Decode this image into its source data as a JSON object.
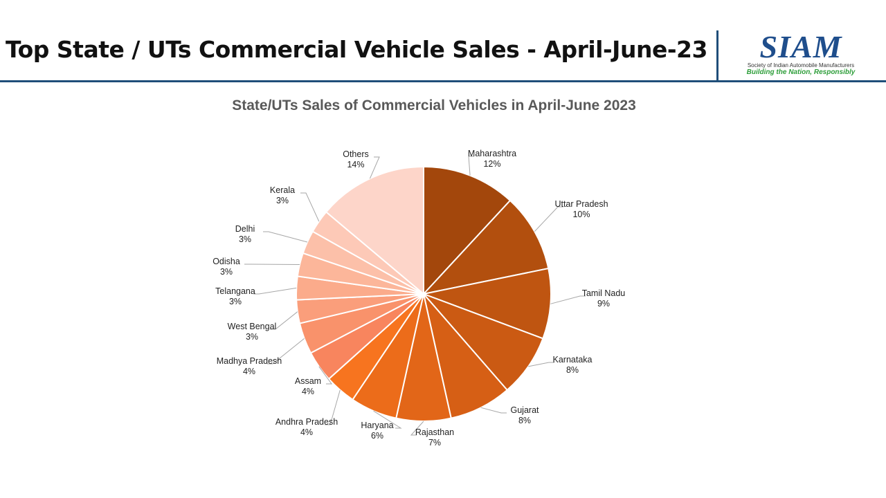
{
  "header": {
    "title": "Top State / UTs Commercial Vehicle Sales - April-June-23",
    "rule_color": "#1f4e79"
  },
  "logo": {
    "wordmark": "SIAM",
    "subtitle": "Society of Indian Automobile Manufacturers",
    "tagline": "Building the Nation, Responsibly",
    "wordmark_color": "#1f4e8c",
    "tagline_color": "#2e9e3a"
  },
  "chart_data": {
    "type": "pie",
    "title": "State/UTs Sales of Commercial Vehicles in April-June 2023",
    "legend": "none",
    "slices": [
      {
        "label": "Maharashtra",
        "value": 12,
        "display": "12%",
        "color": "#a3470c"
      },
      {
        "label": "Uttar Pradesh",
        "value": 10,
        "display": "10%",
        "color": "#b24f0e"
      },
      {
        "label": "Tamil Nadu",
        "value": 9,
        "display": "9%",
        "color": "#bf5511"
      },
      {
        "label": "Karnataka",
        "value": 8,
        "display": "8%",
        "color": "#cb5a13"
      },
      {
        "label": "Gujarat",
        "value": 8,
        "display": "8%",
        "color": "#d65f15"
      },
      {
        "label": "Rajasthan",
        "value": 7,
        "display": "7%",
        "color": "#e26618"
      },
      {
        "label": "Haryana",
        "value": 6,
        "display": "6%",
        "color": "#ec6c1a"
      },
      {
        "label": "Andhra Pradesh",
        "value": 4,
        "display": "4%",
        "color": "#f7741f"
      },
      {
        "label": "Assam",
        "value": 4,
        "display": "4%",
        "color": "#f8855e"
      },
      {
        "label": "Madhya Pradesh",
        "value": 4,
        "display": "4%",
        "color": "#f9926b"
      },
      {
        "label": "West Bengal",
        "value": 3,
        "display": "3%",
        "color": "#fa9e7b"
      },
      {
        "label": "Telangana",
        "value": 3,
        "display": "3%",
        "color": "#fbab8b"
      },
      {
        "label": "Odisha",
        "value": 3,
        "display": "3%",
        "color": "#fcb69a"
      },
      {
        "label": "Delhi",
        "value": 3,
        "display": "3%",
        "color": "#fcc0a9"
      },
      {
        "label": "Kerala",
        "value": 3,
        "display": "3%",
        "color": "#fdc9b7"
      },
      {
        "label": "Others",
        "value": 14,
        "display": "14%",
        "color": "#fdd5c9"
      }
    ]
  }
}
